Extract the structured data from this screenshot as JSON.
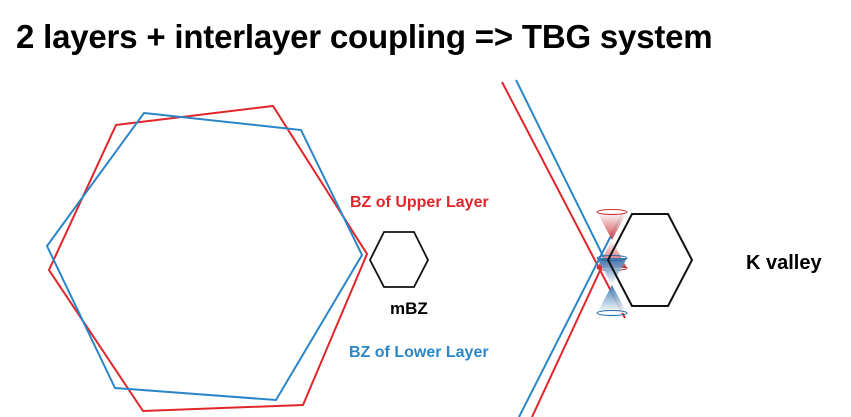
{
  "title": "2 layers + interlayer coupling => TBG system",
  "labels": {
    "upper": "BZ of Upper Layer",
    "lower": "BZ of Lower Layer",
    "mbz": "mBZ",
    "kvalley": "K valley"
  },
  "colors": {
    "upper": "#e0262b",
    "lower": "#2b86c8",
    "mbz": "#111111",
    "text": "#000000"
  }
}
